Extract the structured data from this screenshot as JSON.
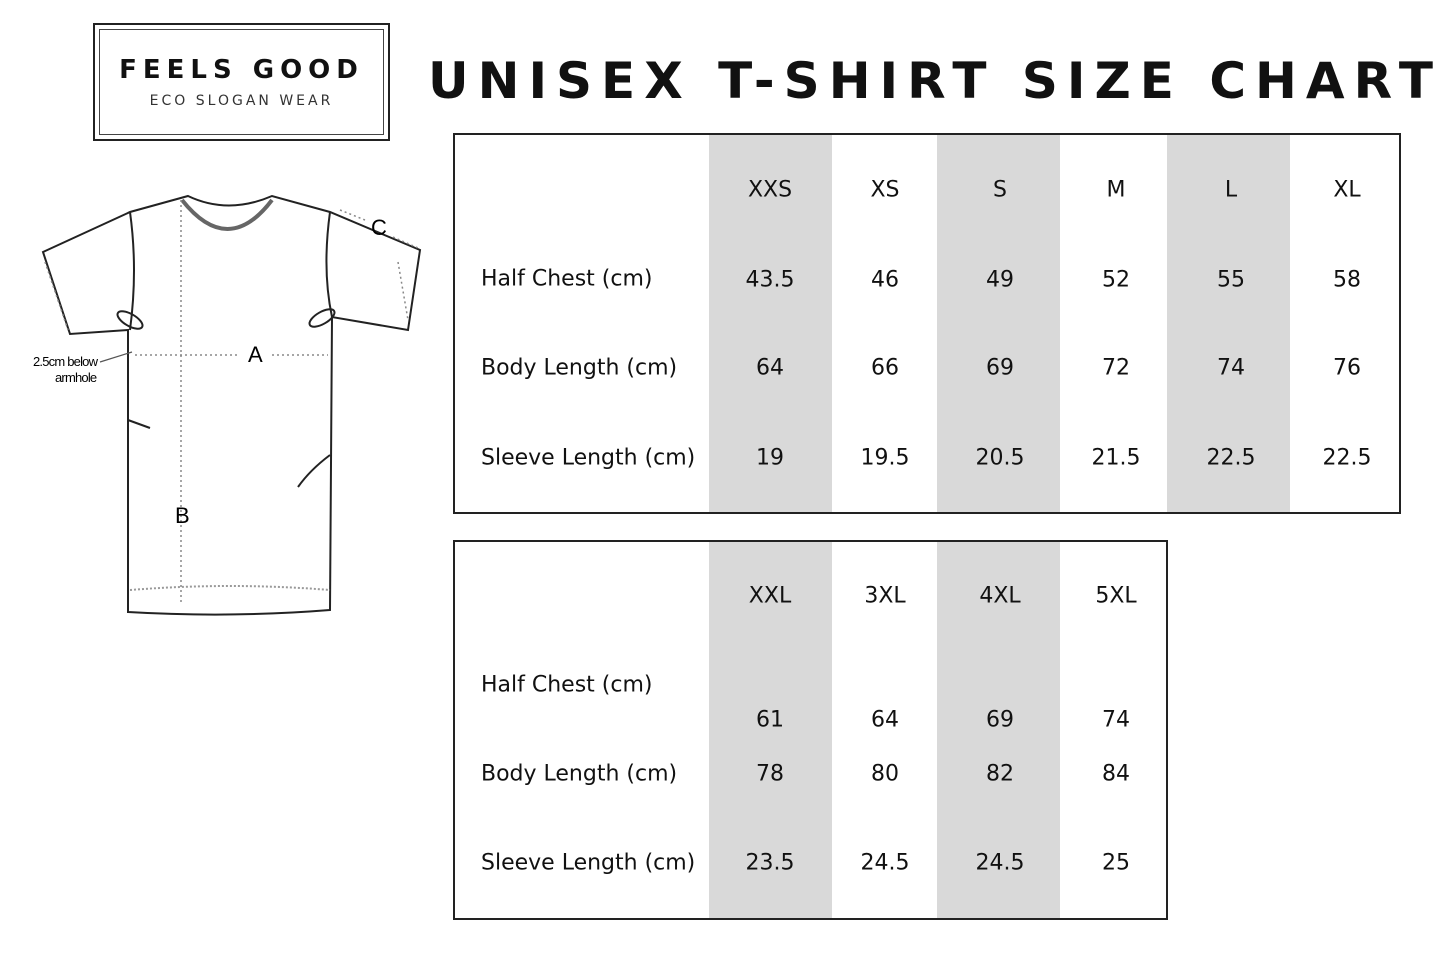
{
  "logo": {
    "brand": "FEELS GOOD",
    "tagline": "ECO SLOGAN WEAR"
  },
  "title": "UNISEX T-SHIRT SIZE CHART",
  "diagram": {
    "labels": {
      "a": "A",
      "b": "B",
      "c": "C"
    },
    "note_line1": "2.5cm below",
    "note_line2": "armhole"
  },
  "stripe_color": "#d9d9d9",
  "table1": {
    "sizes": [
      "XXS",
      "XS",
      "S",
      "M",
      "L",
      "XL"
    ],
    "rows": [
      {
        "label": "Half Chest (cm)",
        "values": [
          "43.5",
          "46",
          "49",
          "52",
          "55",
          "58"
        ]
      },
      {
        "label": "Body Length (cm)",
        "values": [
          "64",
          "66",
          "69",
          "72",
          "74",
          "76"
        ]
      },
      {
        "label": "Sleeve Length (cm)",
        "values": [
          "19",
          "19.5",
          "20.5",
          "21.5",
          "22.5",
          "22.5"
        ]
      }
    ]
  },
  "table2": {
    "sizes": [
      "XXL",
      "3XL",
      "4XL",
      "5XL"
    ],
    "rows": [
      {
        "label": "Half Chest (cm)",
        "values": [
          "61",
          "64",
          "69",
          "74"
        ]
      },
      {
        "label": "Body Length (cm)",
        "values": [
          "78",
          "80",
          "82",
          "84"
        ]
      },
      {
        "label": "Sleeve Length (cm)",
        "values": [
          "23.5",
          "24.5",
          "24.5",
          "25"
        ]
      }
    ]
  }
}
